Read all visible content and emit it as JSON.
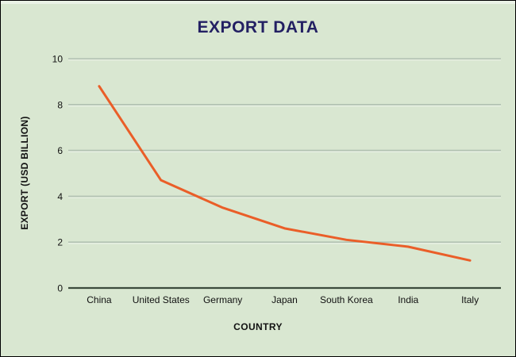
{
  "window": {
    "background_color": "#d9e7d1",
    "border_color": "#000000"
  },
  "chart_data": {
    "type": "line",
    "title": "EXPORT DATA",
    "xlabel": "COUNTRY",
    "ylabel": "EXPORT (USD BILLION)",
    "categories": [
      "China",
      "United States",
      "Germany",
      "Japan",
      "South Korea",
      "India",
      "Italy"
    ],
    "series": [
      {
        "name": "Export",
        "values": [
          8.8,
          4.7,
          3.5,
          2.6,
          2.1,
          1.8,
          1.2
        ],
        "color": "#ea5e28"
      }
    ],
    "ylim": [
      0,
      10
    ],
    "yticks": [
      0,
      2,
      4,
      6,
      8,
      10
    ],
    "ytick_labels": [
      "0",
      "2",
      "4",
      "6",
      "8",
      "10"
    ],
    "grid": true,
    "legend": "none",
    "title_color": "#232063",
    "gridline_color": "#b2c1b2",
    "gridline_highlight_color": "#e9f1e5",
    "axis_color": "#3c4b3c",
    "text_color": "#111111"
  }
}
